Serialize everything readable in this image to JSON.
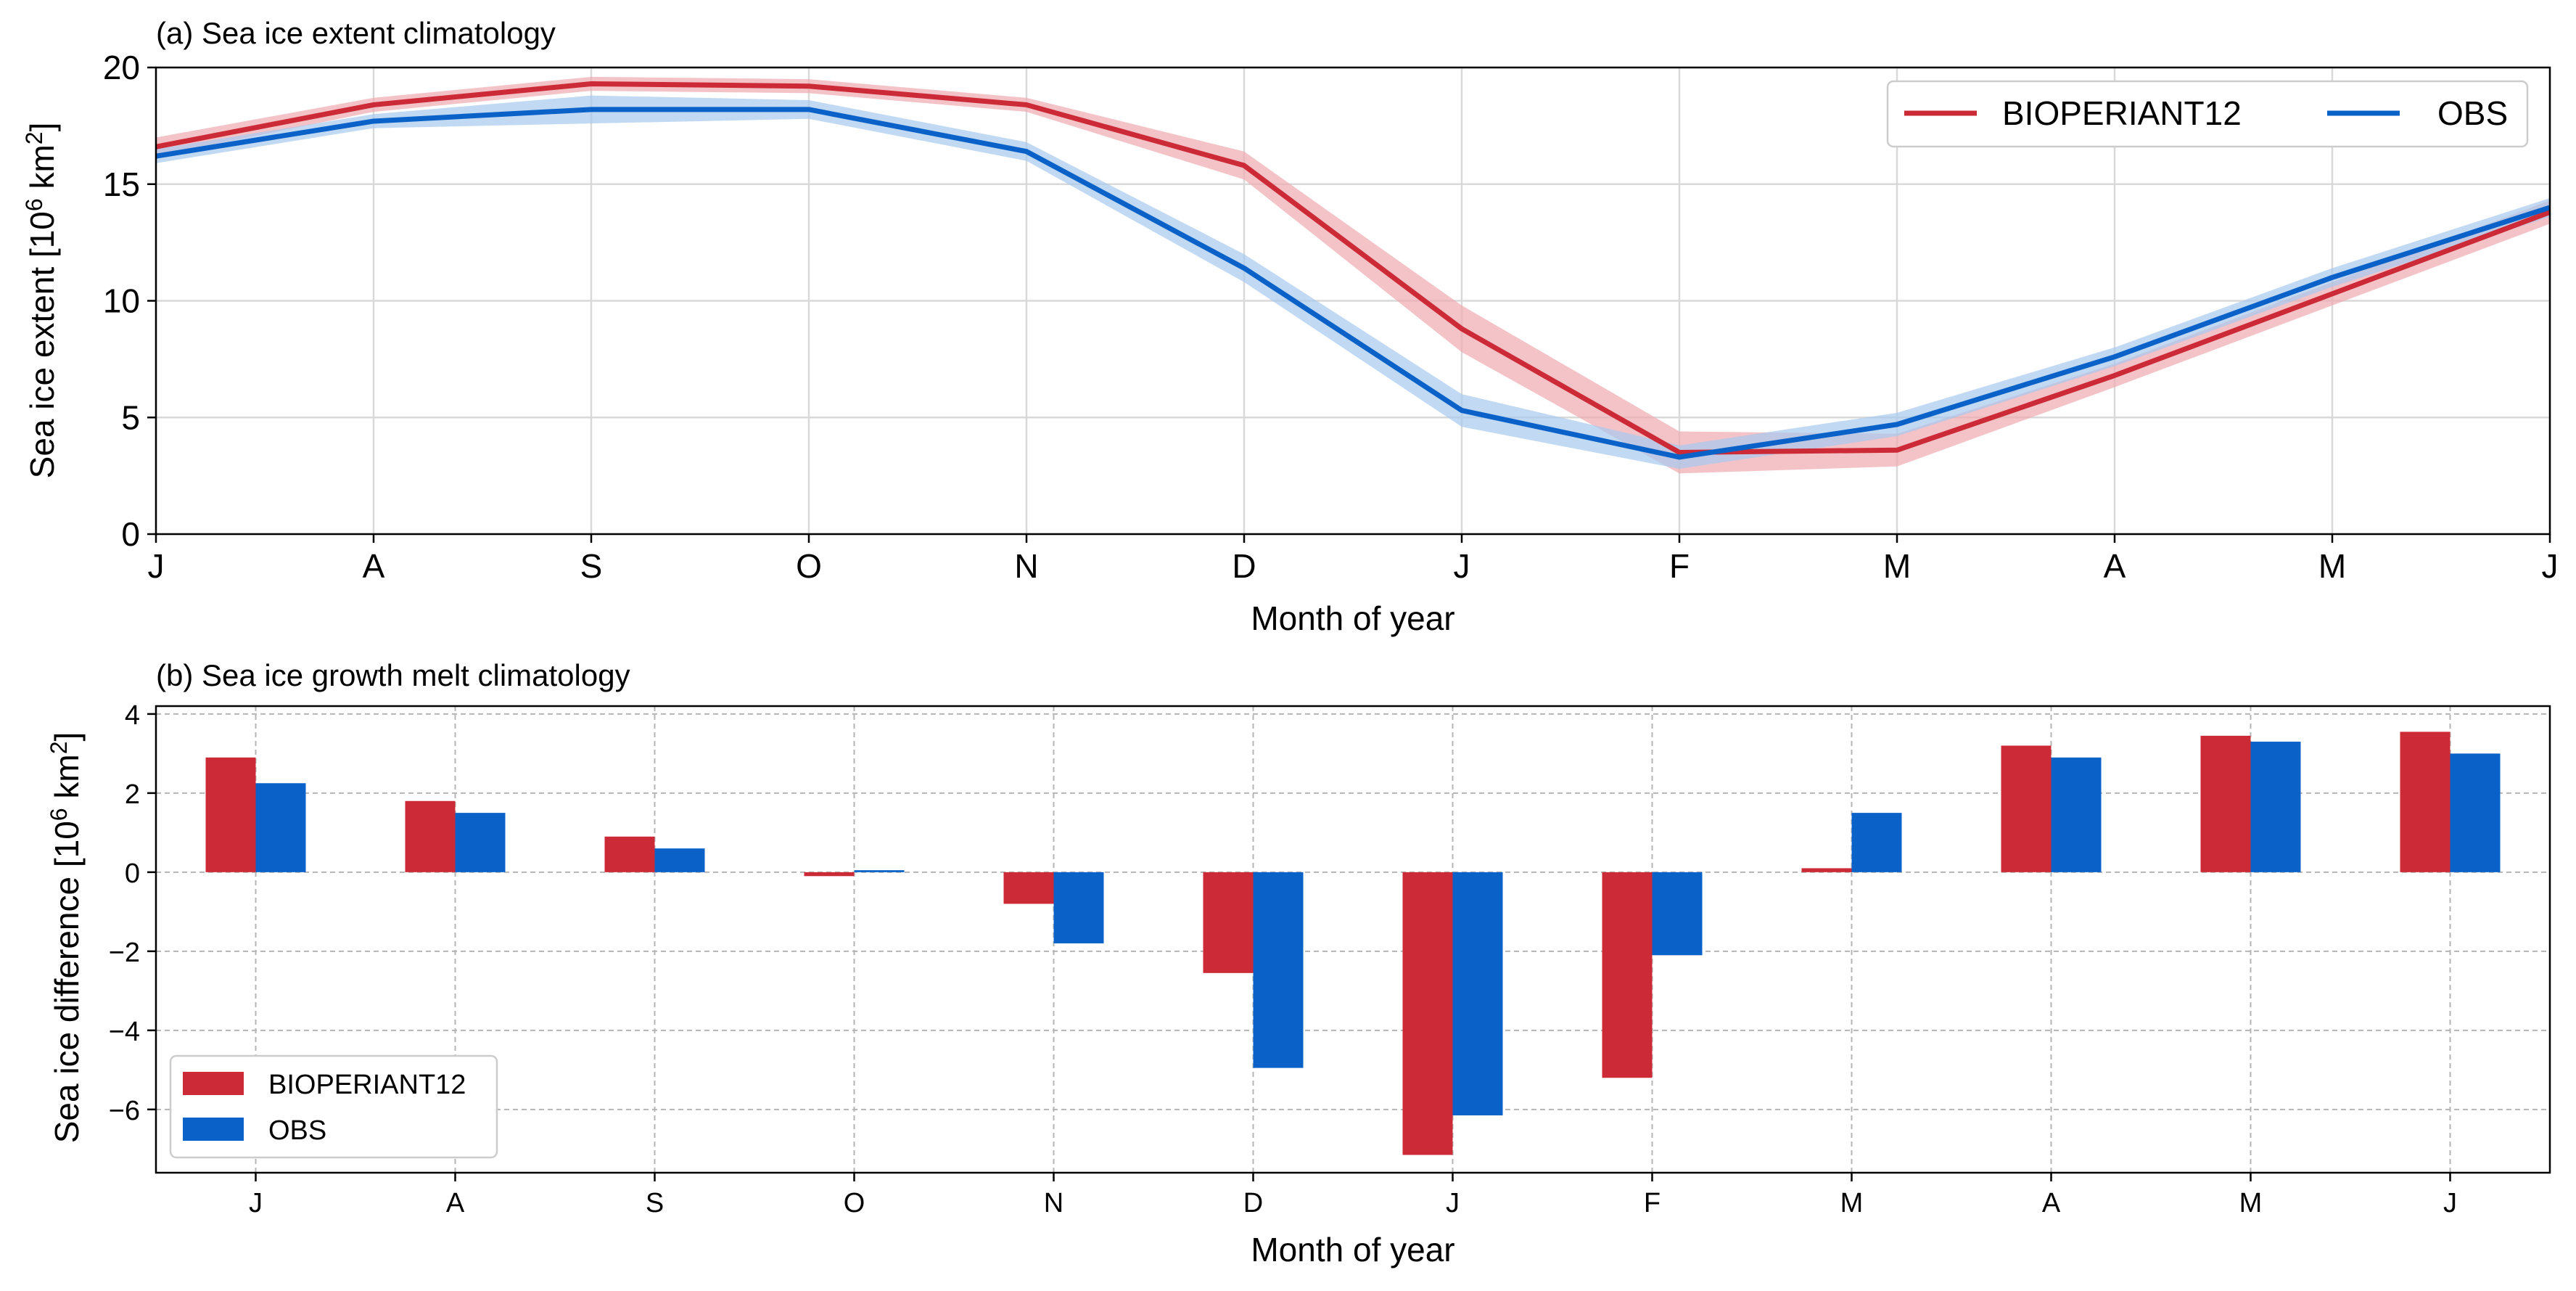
{
  "chart_data": [
    {
      "type": "line",
      "title": "(a) Sea ice extent climatology",
      "xlabel": "Month of year",
      "ylabel_main": "Sea ice extent [10",
      "ylabel_sup": "6",
      "ylabel_unit": " km",
      "ylabel_sup2": "2",
      "ylabel_close": "]",
      "categories": [
        "J",
        "A",
        "S",
        "O",
        "N",
        "D",
        "J",
        "F",
        "M",
        "A",
        "M",
        "J"
      ],
      "ylim": [
        0,
        20
      ],
      "yticks": [
        "0",
        "5",
        "10",
        "15",
        "20"
      ],
      "grid": true,
      "legend_position": "top-right",
      "series": [
        {
          "name": "BIOPERIANT12",
          "color": "#cc2a36",
          "band_color": "#eeaab0",
          "values": [
            16.6,
            18.4,
            19.3,
            19.2,
            18.4,
            15.8,
            8.8,
            3.5,
            3.6,
            6.8,
            10.3,
            13.8
          ],
          "spread": [
            0.4,
            0.3,
            0.3,
            0.3,
            0.3,
            0.6,
            1.0,
            0.9,
            0.7,
            0.5,
            0.5,
            0.5
          ]
        },
        {
          "name": "OBS",
          "color": "#0a62c8",
          "band_color": "#a7c9ee",
          "values": [
            16.2,
            17.7,
            18.2,
            18.2,
            16.4,
            11.4,
            5.3,
            3.3,
            4.7,
            7.6,
            11.0,
            14.0
          ],
          "spread": [
            0.3,
            0.3,
            0.6,
            0.4,
            0.4,
            0.6,
            0.7,
            0.5,
            0.5,
            0.4,
            0.4,
            0.4
          ]
        }
      ]
    },
    {
      "type": "bar",
      "title": "(b) Sea ice growth melt climatology",
      "xlabel": "Month of year",
      "ylabel_main": "Sea ice difference [10",
      "ylabel_sup": "6",
      "ylabel_unit": " km",
      "ylabel_sup2": "2",
      "ylabel_close": "]",
      "categories": [
        "J",
        "A",
        "S",
        "O",
        "N",
        "D",
        "J",
        "F",
        "M",
        "A",
        "M",
        "J"
      ],
      "ylim": [
        -7.6,
        4.2
      ],
      "yticks": [
        "−6",
        "−4",
        "−2",
        "0",
        "2",
        "4"
      ],
      "grid": true,
      "legend_position": "lower-left",
      "series": [
        {
          "name": "BIOPERIANT12",
          "color": "#cc2a36",
          "values": [
            2.9,
            1.8,
            0.9,
            -0.1,
            -0.8,
            -2.55,
            -7.15,
            -5.2,
            0.1,
            3.2,
            3.45,
            3.55
          ]
        },
        {
          "name": "OBS",
          "color": "#0a62c8",
          "values": [
            2.25,
            1.5,
            0.6,
            0.05,
            -1.8,
            -4.95,
            -6.15,
            -2.1,
            1.5,
            2.9,
            3.3,
            3.0
          ]
        }
      ]
    }
  ]
}
